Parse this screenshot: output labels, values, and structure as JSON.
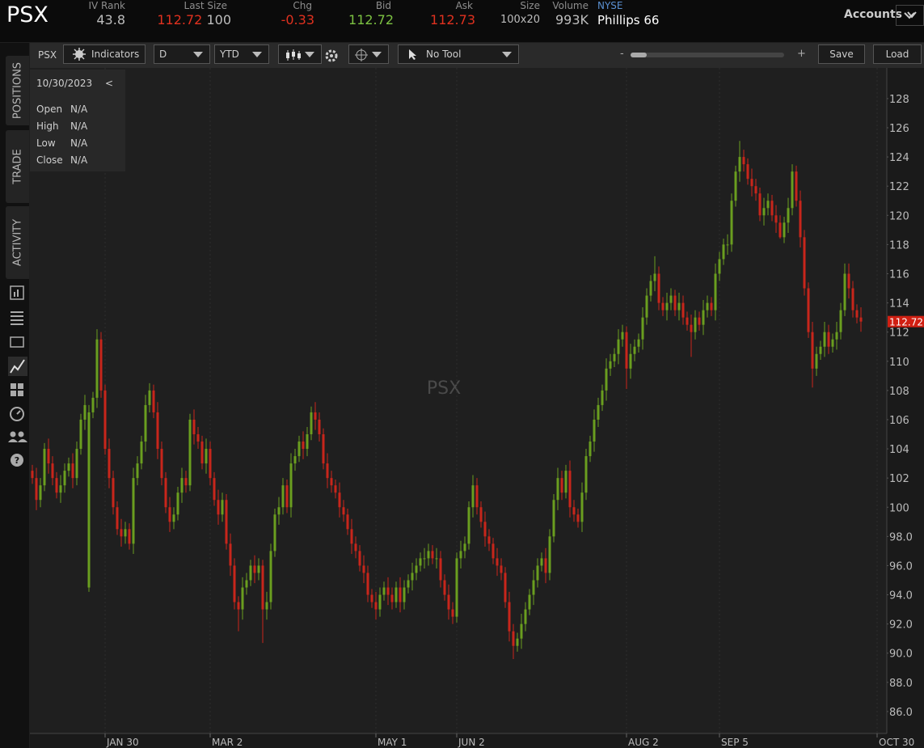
{
  "quote": {
    "symbol": "PSX",
    "fields": [
      {
        "label": "IV Rank",
        "value": "43.8"
      },
      {
        "label": "Last Size",
        "value": "112.72",
        "size": "100"
      },
      {
        "label": "Chg",
        "value": "-0.33"
      },
      {
        "label": "Bid",
        "value": "112.72"
      },
      {
        "label": "Ask",
        "value": "112.73"
      },
      {
        "label": "Size",
        "value": "100x20"
      },
      {
        "label": "Volume",
        "value": "993K"
      }
    ],
    "exchange": "NYSE",
    "name": "Phillips 66",
    "accounts": "Accounts"
  },
  "sidebar": {
    "tabs": [
      "POSITIONS",
      "TRADE",
      "ACTIVITY"
    ]
  },
  "toolbar": {
    "symbol": "PSX",
    "indicators": "Indicators",
    "aggregation": "D",
    "range": "YTD",
    "tool": "No Tool",
    "zoom_out": "-",
    "zoom_in": "+",
    "save": "Save",
    "load": "Load"
  },
  "info": {
    "date": "10/30/2023",
    "back": "<",
    "rows": [
      [
        "Open",
        "N/A"
      ],
      [
        "High",
        "N/A"
      ],
      [
        "Low",
        "N/A"
      ],
      [
        "Close",
        "N/A"
      ]
    ]
  },
  "chart_data": {
    "type": "candlestick",
    "watermark": "PSX",
    "up_color": "#6a9e1f",
    "down_color": "#c8261b",
    "grid": "x",
    "last_price": 112.72,
    "xlim": [
      -0.6,
      211.4
    ],
    "ylim": [
      84.5,
      130.1
    ],
    "xticks": [
      {
        "value": 18,
        "label": "JAN 30"
      },
      {
        "value": 44,
        "label": "MAR 2"
      },
      {
        "value": 85,
        "label": "MAY 1"
      },
      {
        "value": 105,
        "label": "JUN 2"
      },
      {
        "value": 147,
        "label": "AUG 2"
      },
      {
        "value": 170,
        "label": "SEP 5"
      },
      {
        "value": 209,
        "label": "OCT 30"
      }
    ],
    "yticks": [
      {
        "value": 86,
        "label": "86.0"
      },
      {
        "value": 88,
        "label": "88.0"
      },
      {
        "value": 90,
        "label": "90.0"
      },
      {
        "value": 92,
        "label": "92.0"
      },
      {
        "value": 94,
        "label": "94.0"
      },
      {
        "value": 96,
        "label": "96.0"
      },
      {
        "value": 98,
        "label": "98.0"
      },
      100,
      102,
      104,
      106,
      108,
      110,
      112,
      114,
      116,
      118,
      120,
      122,
      124,
      126,
      128
    ],
    "candles": [
      [
        102.5,
        102.9,
        101.6,
        102
      ],
      [
        102,
        102.7,
        99.8,
        100.5
      ],
      [
        100.5,
        102,
        100,
        101.5
      ],
      [
        101.5,
        104.4,
        101.1,
        104
      ],
      [
        104,
        104.7,
        102.3,
        103
      ],
      [
        103,
        103.5,
        101.5,
        102
      ],
      [
        102,
        102.4,
        100.6,
        101
      ],
      [
        101,
        102.2,
        100.3,
        101.5
      ],
      [
        101.5,
        103,
        101,
        102.5
      ],
      [
        102.5,
        103.4,
        102.1,
        103
      ],
      [
        103,
        103.7,
        101.3,
        102
      ],
      [
        102,
        104.5,
        101.5,
        104
      ],
      [
        104,
        106.4,
        103.6,
        106
      ],
      [
        106,
        107.7,
        105.3,
        107
      ],
      [
        94.5,
        107,
        94.2,
        106.5
      ],
      [
        106.5,
        107.9,
        106.1,
        107.5
      ],
      [
        107.5,
        112.2,
        106.8,
        111.5
      ],
      [
        111.5,
        112,
        107.5,
        108
      ],
      [
        108,
        108.4,
        103.6,
        104
      ],
      [
        104,
        104.7,
        101.3,
        102
      ],
      [
        102,
        102.5,
        99.5,
        100
      ],
      [
        100,
        100.4,
        98.1,
        98.5
      ],
      [
        98.5,
        99.2,
        97.3,
        98
      ],
      [
        98,
        99,
        97.5,
        98.5
      ],
      [
        98.5,
        98.9,
        97.1,
        97.5
      ],
      [
        97.5,
        102.7,
        96.8,
        102
      ],
      [
        102,
        103.5,
        101.5,
        103
      ],
      [
        103,
        104.9,
        102.6,
        104.5
      ],
      [
        104.5,
        107.7,
        103.8,
        107
      ],
      [
        107,
        108.5,
        106.5,
        108
      ],
      [
        108,
        108.4,
        106.1,
        106.5
      ],
      [
        106.5,
        107.2,
        103.3,
        104
      ],
      [
        104,
        104.5,
        101.5,
        102
      ],
      [
        102,
        102.4,
        99.6,
        100
      ],
      [
        100,
        100.7,
        98.3,
        99
      ],
      [
        99,
        100,
        98.5,
        99.5
      ],
      [
        99.5,
        101.4,
        99.1,
        101
      ],
      [
        101,
        102.7,
        100.3,
        102
      ],
      [
        102,
        102.5,
        101,
        101.5
      ],
      [
        101.5,
        106.4,
        101.1,
        106
      ],
      [
        106,
        106.7,
        104.3,
        105
      ],
      [
        105,
        105.5,
        104,
        104.5
      ],
      [
        104.5,
        104.9,
        102.6,
        103
      ],
      [
        103,
        104.7,
        102.3,
        104
      ],
      [
        104,
        104.5,
        101.5,
        102
      ],
      [
        102,
        102.4,
        100.1,
        100.5
      ],
      [
        100.5,
        101.2,
        98.8,
        99.5
      ],
      [
        99.5,
        101,
        99,
        100.5
      ],
      [
        100.5,
        100.9,
        97.1,
        97.5
      ],
      [
        97.5,
        98.2,
        95.3,
        96
      ],
      [
        96,
        96.5,
        93,
        93.5
      ],
      [
        93.5,
        93.9,
        91.5,
        93
      ],
      [
        93,
        95.2,
        92.3,
        94.5
      ],
      [
        94.5,
        95.5,
        94,
        95
      ],
      [
        95,
        96.4,
        94.6,
        96
      ],
      [
        96,
        96.7,
        94.8,
        95.5
      ],
      [
        95.5,
        96.5,
        95,
        96
      ],
      [
        96,
        96.4,
        90.7,
        93
      ],
      [
        93,
        94.2,
        92.3,
        93.5
      ],
      [
        93.5,
        97.5,
        93,
        97
      ],
      [
        97,
        99.9,
        96.6,
        99.5
      ],
      [
        99.5,
        100.7,
        98.8,
        100
      ],
      [
        100,
        102,
        99.5,
        101.5
      ],
      [
        101.5,
        101.9,
        99.6,
        100
      ],
      [
        100,
        103.7,
        99.3,
        103
      ],
      [
        103,
        104,
        102.5,
        103.5
      ],
      [
        103.5,
        104.9,
        103.1,
        104.5
      ],
      [
        104.5,
        105.2,
        103.3,
        104
      ],
      [
        104,
        105.5,
        103.5,
        105
      ],
      [
        105,
        106.9,
        104.6,
        106.5
      ],
      [
        106.5,
        107.2,
        105.3,
        106
      ],
      [
        106,
        106.5,
        104.5,
        105
      ],
      [
        105,
        105.4,
        102.6,
        103
      ],
      [
        103,
        103.7,
        101.3,
        102
      ],
      [
        102,
        102.5,
        101,
        101.5
      ],
      [
        101.5,
        101.9,
        100.6,
        101
      ],
      [
        101,
        101.7,
        99.3,
        100
      ],
      [
        100,
        100.5,
        99,
        99.5
      ],
      [
        99.5,
        99.9,
        98.1,
        98.5
      ],
      [
        98.5,
        99.2,
        96.8,
        97.5
      ],
      [
        97.5,
        98,
        96.5,
        97
      ],
      [
        97,
        97.4,
        95.6,
        96
      ],
      [
        96,
        96.7,
        94.8,
        95.5
      ],
      [
        95.5,
        96,
        93.5,
        94
      ],
      [
        94,
        94.4,
        93.1,
        93.5
      ],
      [
        93.5,
        94.2,
        92.3,
        93
      ],
      [
        93,
        94.5,
        92.5,
        94
      ],
      [
        94,
        94.9,
        93.6,
        94.5
      ],
      [
        94.5,
        95.2,
        93.3,
        94
      ],
      [
        94,
        94.5,
        93,
        93.5
      ],
      [
        93.5,
        94.9,
        93.1,
        94.5
      ],
      [
        94.5,
        95.2,
        92.8,
        93.5
      ],
      [
        93.5,
        95,
        93,
        94.5
      ],
      [
        94.5,
        95.4,
        94.1,
        95
      ],
      [
        95,
        96.2,
        94.3,
        95.5
      ],
      [
        95.5,
        96.5,
        95,
        96
      ],
      [
        96,
        96.9,
        95.6,
        96.5
      ],
      [
        96.5,
        97.2,
        95.8,
        96.5
      ],
      [
        96.5,
        97.5,
        96,
        97
      ],
      [
        97,
        97.4,
        96.1,
        96.5
      ],
      [
        96.5,
        97.2,
        95.8,
        96.5
      ],
      [
        96.5,
        97,
        94.5,
        95
      ],
      [
        95,
        95.4,
        93.6,
        94
      ],
      [
        94,
        94.7,
        92.3,
        93
      ],
      [
        93,
        93.5,
        92,
        92.5
      ],
      [
        92.5,
        96.9,
        92.1,
        96.5
      ],
      [
        96.5,
        97.7,
        95.8,
        97
      ],
      [
        97,
        98,
        96.5,
        97.5
      ],
      [
        97.5,
        100.4,
        97.1,
        100
      ],
      [
        100,
        102.2,
        99.3,
        101.5
      ],
      [
        101.5,
        102,
        99.5,
        100
      ],
      [
        100,
        100.4,
        98.6,
        99
      ],
      [
        99,
        99.7,
        97.3,
        98
      ],
      [
        98,
        98.5,
        97,
        97.5
      ],
      [
        97.5,
        97.9,
        96.1,
        96.5
      ],
      [
        96.5,
        97.2,
        95.3,
        96
      ],
      [
        96,
        96.5,
        95,
        95.5
      ],
      [
        95.5,
        95.9,
        93.1,
        93.5
      ],
      [
        93.5,
        94.2,
        90.8,
        91.5
      ],
      [
        91.5,
        92,
        89.6,
        90.5
      ],
      [
        90.5,
        91.4,
        90.1,
        91
      ],
      [
        91,
        92.7,
        90.3,
        92
      ],
      [
        92,
        93.5,
        91.5,
        93
      ],
      [
        93,
        94.4,
        92.6,
        94
      ],
      [
        94,
        95.7,
        93.3,
        95
      ],
      [
        95,
        96.5,
        94.5,
        96
      ],
      [
        96,
        96.9,
        95.6,
        96.5
      ],
      [
        96.5,
        97.2,
        94.8,
        95.5
      ],
      [
        95.5,
        98.5,
        95,
        98
      ],
      [
        98,
        100.9,
        97.6,
        100.5
      ],
      [
        100.5,
        102.7,
        99.8,
        102
      ],
      [
        102,
        102.5,
        100.5,
        101
      ],
      [
        101,
        102.9,
        100.6,
        102.5
      ],
      [
        102.5,
        103.2,
        99.3,
        100
      ],
      [
        100,
        100.5,
        99,
        99.5
      ],
      [
        99.5,
        99.9,
        98.6,
        99
      ],
      [
        99,
        101.7,
        98.3,
        101
      ],
      [
        101,
        104,
        100.5,
        103.5
      ],
      [
        103.5,
        104.9,
        103.1,
        104.5
      ],
      [
        104.5,
        106.7,
        103.8,
        106
      ],
      [
        106,
        107.5,
        105.5,
        107
      ],
      [
        107,
        108.4,
        106.6,
        108
      ],
      [
        108,
        110.2,
        107.3,
        109.5
      ],
      [
        109.5,
        110.5,
        109,
        110
      ],
      [
        110,
        110.9,
        109.6,
        110.5
      ],
      [
        110.5,
        112.2,
        109.8,
        111.5
      ],
      [
        111.5,
        112.5,
        111,
        112
      ],
      [
        112,
        112.4,
        108.1,
        109.5
      ],
      [
        109.5,
        111.2,
        108.8,
        110.5
      ],
      [
        110.5,
        111.5,
        110,
        111
      ],
      [
        111,
        111.9,
        110.6,
        111.5
      ],
      [
        111.5,
        113.7,
        110.8,
        113
      ],
      [
        113,
        115,
        112.5,
        114.5
      ],
      [
        114.5,
        115.9,
        114.1,
        115.5
      ],
      [
        115.5,
        117.2,
        114.8,
        116
      ],
      [
        116,
        116.5,
        113.5,
        114
      ],
      [
        114,
        114.4,
        113.1,
        113.5
      ],
      [
        113.5,
        114.7,
        112.8,
        114
      ],
      [
        114,
        115,
        113.5,
        114.5
      ],
      [
        114.5,
        114.9,
        113.1,
        113.5
      ],
      [
        113.5,
        114.7,
        112.8,
        114
      ],
      [
        114,
        114.5,
        112.5,
        113
      ],
      [
        113,
        113.4,
        112.1,
        112.5
      ],
      [
        112.5,
        113.2,
        110.3,
        112
      ],
      [
        112,
        113.5,
        111.5,
        113
      ],
      [
        113,
        113.4,
        112.1,
        112.5
      ],
      [
        112.5,
        114.2,
        111.8,
        113.5
      ],
      [
        113.5,
        114.5,
        113,
        114
      ],
      [
        114,
        114.4,
        113.1,
        113.5
      ],
      [
        113.5,
        116.7,
        112.8,
        116
      ],
      [
        116,
        117.5,
        115.5,
        117
      ],
      [
        117,
        118.4,
        116.6,
        118
      ],
      [
        118,
        118.7,
        117.3,
        118
      ],
      [
        118,
        121.5,
        117.5,
        121
      ],
      [
        121,
        123.4,
        120.6,
        123
      ],
      [
        123,
        125.1,
        122.3,
        124
      ],
      [
        124,
        124.5,
        123,
        123.5
      ],
      [
        123.5,
        123.9,
        122.1,
        122.5
      ],
      [
        122.5,
        123.2,
        121.3,
        122
      ],
      [
        122,
        122.5,
        121,
        121.5
      ],
      [
        121.5,
        121.9,
        119.6,
        120
      ],
      [
        120,
        121.2,
        119.3,
        120.5
      ],
      [
        120.5,
        121.5,
        120,
        121
      ],
      [
        121,
        121.4,
        119.6,
        120
      ],
      [
        120,
        120.7,
        118.8,
        119.5
      ],
      [
        119.5,
        120,
        118.4,
        118.5
      ],
      [
        118.5,
        119.9,
        118.1,
        119.5
      ],
      [
        119.5,
        121.2,
        118.8,
        120.5
      ],
      [
        120.5,
        123.5,
        120,
        123
      ],
      [
        123,
        123.4,
        120.6,
        121
      ],
      [
        121,
        121.7,
        117.8,
        118.5
      ],
      [
        118.5,
        119,
        114.5,
        115
      ],
      [
        115,
        115.4,
        111.6,
        112
      ],
      [
        112,
        112.7,
        108.2,
        109.5
      ],
      [
        109.5,
        111,
        109,
        110.5
      ],
      [
        110.5,
        111.4,
        110.1,
        111
      ],
      [
        111,
        112.7,
        110.3,
        112
      ],
      [
        112,
        112.5,
        110.5,
        111
      ],
      [
        111,
        111.9,
        110.6,
        111.5
      ],
      [
        111.5,
        112.7,
        110.8,
        112
      ],
      [
        112,
        114,
        111.5,
        113.5
      ],
      [
        113.5,
        116.7,
        113.1,
        116
      ],
      [
        116,
        116.7,
        114.3,
        115
      ],
      [
        115,
        115.5,
        113,
        113.5
      ],
      [
        113.5,
        113.9,
        112.6,
        113
      ],
      [
        113,
        113.7,
        112.02,
        112.72
      ]
    ]
  }
}
